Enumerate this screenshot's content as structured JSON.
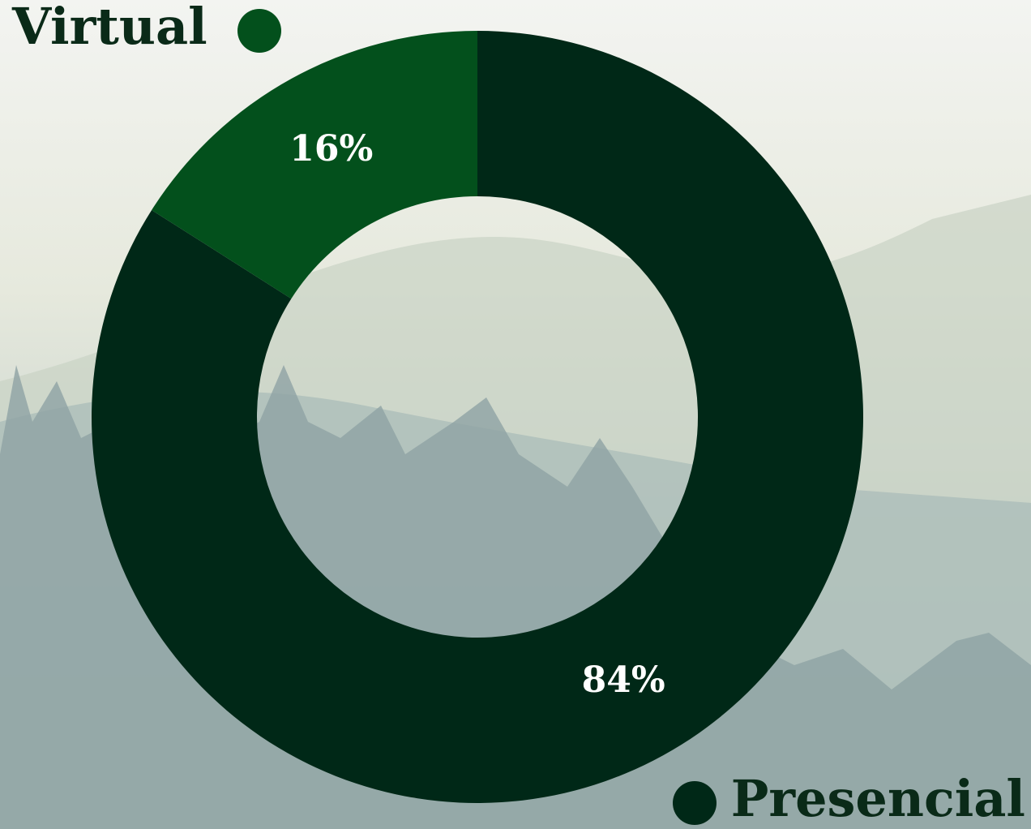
{
  "chart_data": {
    "type": "pie",
    "donut": true,
    "categories": [
      "Presencial",
      "Virtual"
    ],
    "values": [
      84,
      16
    ],
    "value_labels": [
      "84%",
      "16%"
    ],
    "colors": [
      "#002817",
      "#03501c"
    ]
  }
}
